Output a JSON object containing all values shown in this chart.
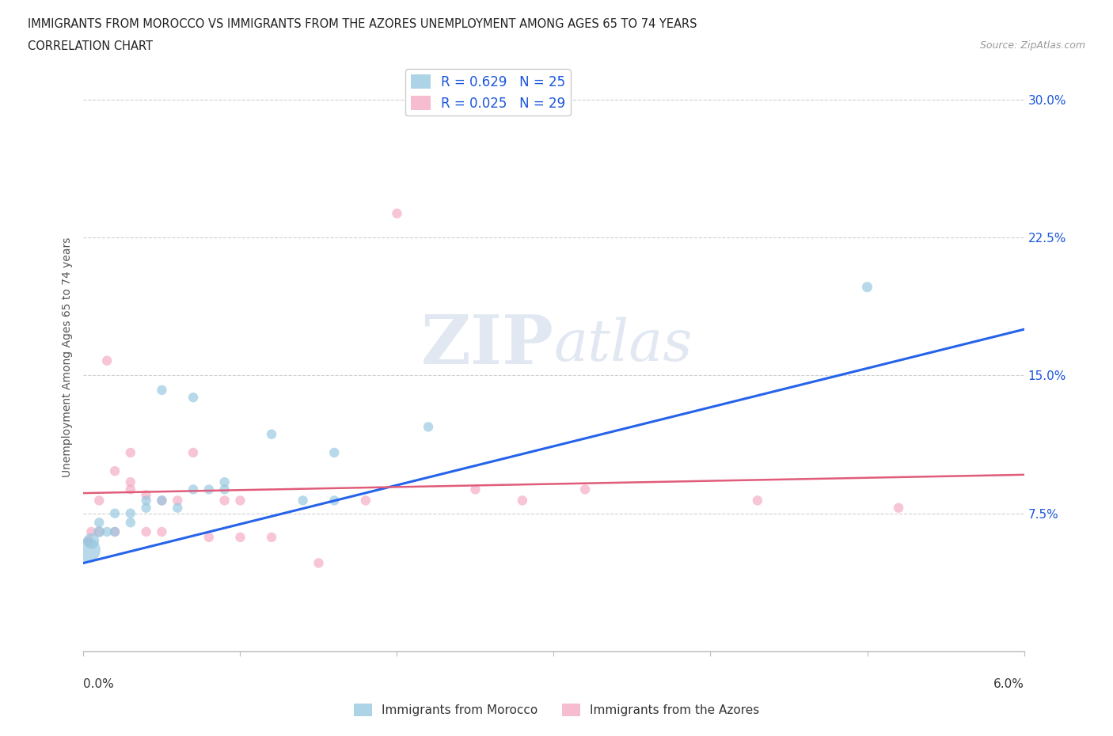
{
  "title_line1": "IMMIGRANTS FROM MOROCCO VS IMMIGRANTS FROM THE AZORES UNEMPLOYMENT AMONG AGES 65 TO 74 YEARS",
  "title_line2": "CORRELATION CHART",
  "source": "Source: ZipAtlas.com",
  "ylabel": "Unemployment Among Ages 65 to 74 years",
  "xlim": [
    0.0,
    0.06
  ],
  "ylim": [
    0.0,
    0.32
  ],
  "morocco_color": "#92c5de",
  "azores_color": "#f4a6c0",
  "morocco_R": 0.629,
  "morocco_N": 25,
  "azores_R": 0.025,
  "azores_N": 29,
  "morocco_scatter_x": [
    0.0003,
    0.0005,
    0.001,
    0.001,
    0.0015,
    0.002,
    0.002,
    0.003,
    0.003,
    0.004,
    0.004,
    0.005,
    0.005,
    0.006,
    0.007,
    0.007,
    0.008,
    0.009,
    0.009,
    0.012,
    0.014,
    0.016,
    0.016,
    0.022,
    0.05
  ],
  "morocco_scatter_y": [
    0.055,
    0.06,
    0.065,
    0.07,
    0.065,
    0.065,
    0.075,
    0.07,
    0.075,
    0.078,
    0.082,
    0.082,
    0.142,
    0.078,
    0.088,
    0.138,
    0.088,
    0.092,
    0.088,
    0.118,
    0.082,
    0.108,
    0.082,
    0.122,
    0.198
  ],
  "morocco_bubble_size": [
    500,
    200,
    100,
    80,
    80,
    80,
    80,
    80,
    80,
    80,
    80,
    80,
    80,
    80,
    80,
    80,
    80,
    80,
    80,
    80,
    80,
    80,
    80,
    80,
    90
  ],
  "azores_scatter_x": [
    0.0003,
    0.0005,
    0.001,
    0.001,
    0.0015,
    0.002,
    0.002,
    0.003,
    0.003,
    0.003,
    0.004,
    0.004,
    0.005,
    0.005,
    0.006,
    0.007,
    0.008,
    0.009,
    0.01,
    0.01,
    0.012,
    0.015,
    0.018,
    0.02,
    0.025,
    0.028,
    0.032,
    0.043,
    0.052
  ],
  "azores_scatter_y": [
    0.06,
    0.065,
    0.065,
    0.082,
    0.158,
    0.065,
    0.098,
    0.088,
    0.092,
    0.108,
    0.065,
    0.085,
    0.082,
    0.065,
    0.082,
    0.108,
    0.062,
    0.082,
    0.082,
    0.062,
    0.062,
    0.048,
    0.082,
    0.238,
    0.088,
    0.082,
    0.088,
    0.082,
    0.078
  ],
  "azores_bubble_size": [
    80,
    80,
    80,
    80,
    80,
    80,
    80,
    80,
    80,
    80,
    80,
    80,
    80,
    80,
    80,
    80,
    80,
    80,
    80,
    80,
    80,
    80,
    80,
    80,
    80,
    80,
    80,
    80,
    80
  ],
  "morocco_trend_x": [
    0.0,
    0.06
  ],
  "morocco_trend_y": [
    0.048,
    0.175
  ],
  "azores_trend_x": [
    0.0,
    0.06
  ],
  "azores_trend_y": [
    0.086,
    0.096
  ],
  "ytick_vals": [
    0.075,
    0.15,
    0.225,
    0.3
  ],
  "ytick_labels": [
    "7.5%",
    "15.0%",
    "22.5%",
    "30.0%"
  ],
  "grid_color": "#d0d0d0",
  "background_color": "#ffffff",
  "legend_text_color": "#1a56db",
  "morocco_trend_color": "#2563eb",
  "azores_trend_color": "#e05c7a"
}
